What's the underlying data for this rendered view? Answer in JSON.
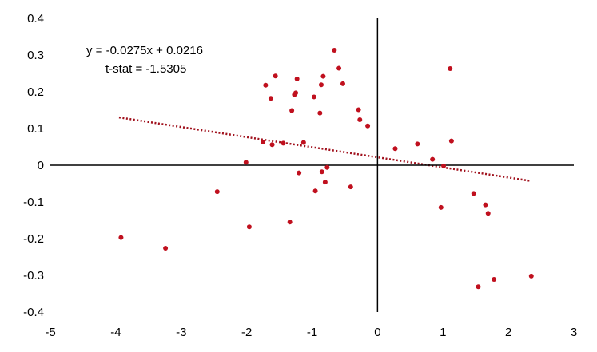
{
  "chart_data": {
    "type": "scatter",
    "title": "",
    "xlabel": "",
    "ylabel": "",
    "xlim": [
      -5,
      3
    ],
    "ylim": [
      -0.4,
      0.4
    ],
    "x_ticks": [
      -5,
      -4,
      -3,
      -2,
      -1,
      0,
      1,
      2,
      3
    ],
    "y_ticks": [
      0.4,
      0.3,
      0.2,
      0.1,
      0,
      -0.1,
      -0.2,
      -0.3,
      -0.4
    ],
    "x_tick_labels": [
      "-5",
      "-4",
      "-3",
      "-2",
      "-1",
      "0",
      "1",
      "2",
      "3"
    ],
    "y_tick_labels": [
      "0.4",
      "0.3",
      "0.2",
      "0.1",
      "0",
      "-0.1",
      "-0.2",
      "-0.3",
      "-0.4"
    ],
    "grid": false,
    "legend": "none",
    "colors": {
      "points": "#c0101e",
      "trendline": "#a0101c",
      "axes": "#000000"
    },
    "annotations": {
      "equation": "y = -0.0275x + 0.0216",
      "tstat": "t-stat = -1.5305"
    },
    "trendline": {
      "slope": -0.0275,
      "intercept": 0.0216,
      "x_range": [
        -3.95,
        2.33
      ]
    },
    "points": [
      {
        "x": -3.92,
        "y": -0.197
      },
      {
        "x": -3.24,
        "y": -0.226
      },
      {
        "x": -2.45,
        "y": -0.072
      },
      {
        "x": -2.01,
        "y": 0.008
      },
      {
        "x": -1.96,
        "y": -0.168
      },
      {
        "x": -1.75,
        "y": 0.063
      },
      {
        "x": -1.71,
        "y": 0.218
      },
      {
        "x": -1.63,
        "y": 0.182
      },
      {
        "x": -1.61,
        "y": 0.056
      },
      {
        "x": -1.56,
        "y": 0.243
      },
      {
        "x": -1.44,
        "y": 0.06
      },
      {
        "x": -1.34,
        "y": -0.155
      },
      {
        "x": -1.31,
        "y": 0.149
      },
      {
        "x": -1.27,
        "y": 0.192
      },
      {
        "x": -1.25,
        "y": 0.197
      },
      {
        "x": -1.23,
        "y": 0.235
      },
      {
        "x": -1.2,
        "y": -0.021
      },
      {
        "x": -1.13,
        "y": 0.062
      },
      {
        "x": -0.97,
        "y": 0.186
      },
      {
        "x": -0.95,
        "y": -0.07
      },
      {
        "x": -0.88,
        "y": 0.142
      },
      {
        "x": -0.86,
        "y": 0.219
      },
      {
        "x": -0.85,
        "y": -0.018
      },
      {
        "x": -0.83,
        "y": 0.242
      },
      {
        "x": -0.8,
        "y": -0.046
      },
      {
        "x": -0.77,
        "y": -0.006
      },
      {
        "x": -0.66,
        "y": 0.313
      },
      {
        "x": -0.59,
        "y": 0.264
      },
      {
        "x": -0.53,
        "y": 0.222
      },
      {
        "x": -0.41,
        "y": -0.059
      },
      {
        "x": -0.29,
        "y": 0.151
      },
      {
        "x": -0.27,
        "y": 0.124
      },
      {
        "x": -0.15,
        "y": 0.107
      },
      {
        "x": 0.27,
        "y": 0.045
      },
      {
        "x": 0.61,
        "y": 0.058
      },
      {
        "x": 0.84,
        "y": 0.016
      },
      {
        "x": 0.97,
        "y": -0.115
      },
      {
        "x": 1.01,
        "y": -0.002
      },
      {
        "x": 1.11,
        "y": 0.263
      },
      {
        "x": 1.13,
        "y": 0.066
      },
      {
        "x": 1.47,
        "y": -0.077
      },
      {
        "x": 1.54,
        "y": -0.331
      },
      {
        "x": 1.65,
        "y": -0.108
      },
      {
        "x": 1.69,
        "y": -0.131
      },
      {
        "x": 1.78,
        "y": -0.311
      },
      {
        "x": 2.35,
        "y": -0.302
      }
    ]
  }
}
